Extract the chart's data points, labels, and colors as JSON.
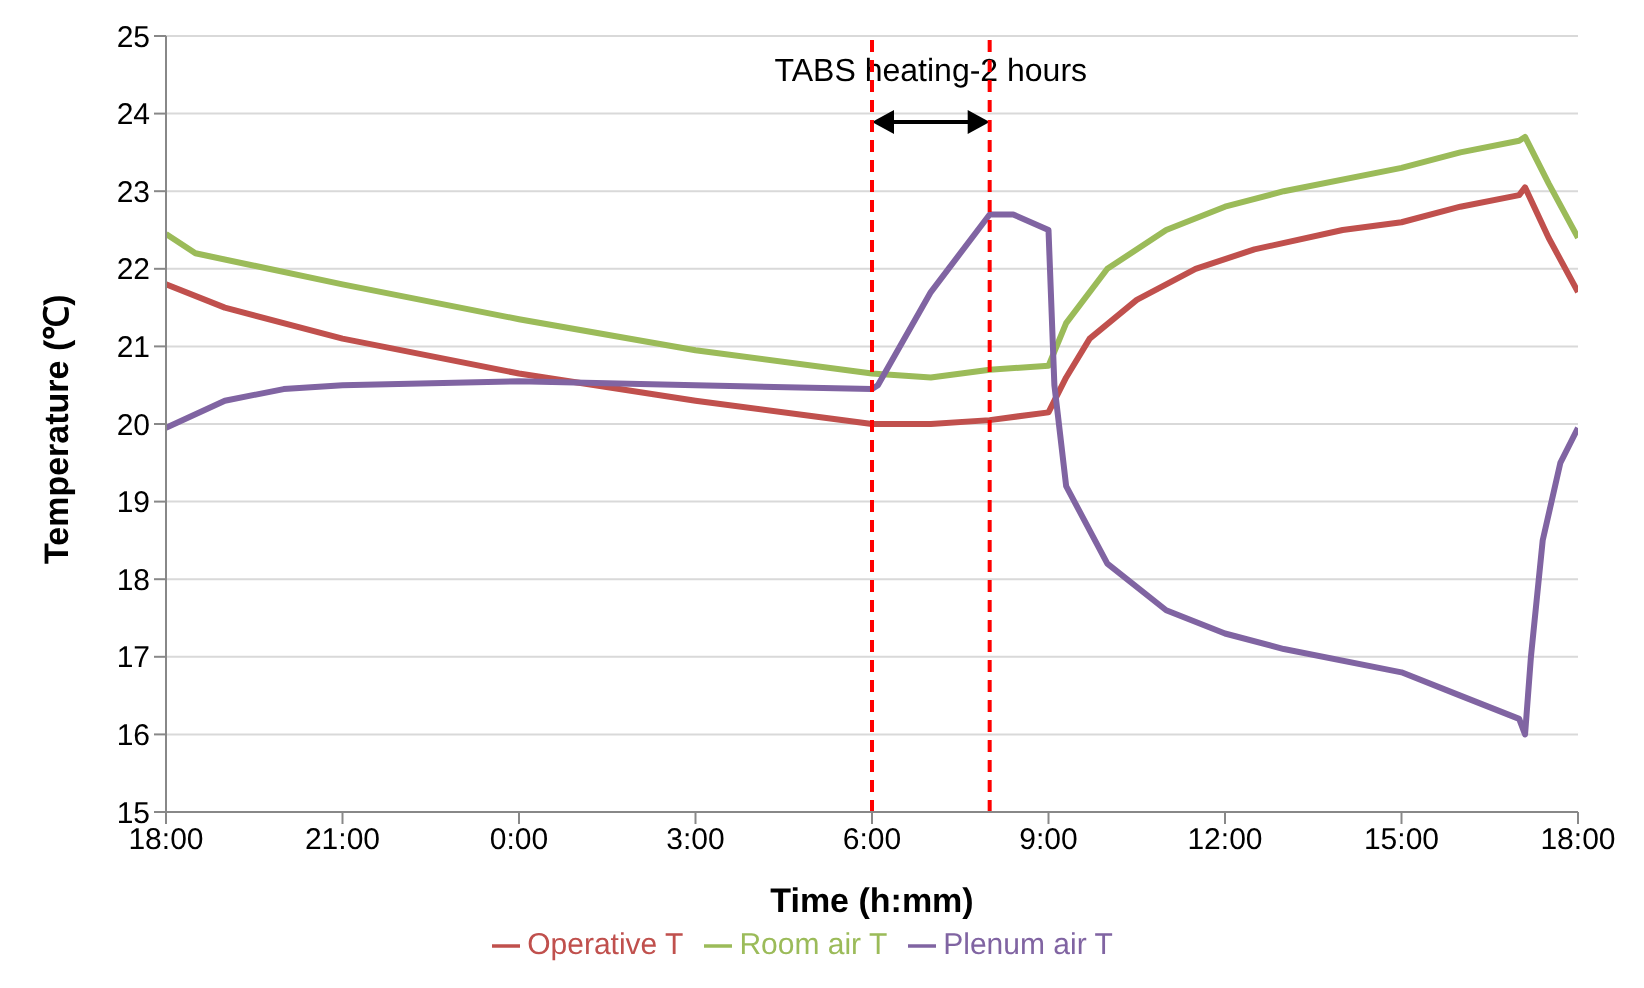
{
  "chart_data": {
    "type": "line",
    "xlabel": "Time (h:mm)",
    "ylabel": "Temperature (℃)",
    "xlim": [
      "2000-01-01T18:00",
      "2000-01-02T18:00"
    ],
    "xticks": [
      {
        "value": "2000-01-01T18:00",
        "label": "18:00"
      },
      {
        "value": "2000-01-01T21:00",
        "label": "21:00"
      },
      {
        "value": "2000-01-02T00:00",
        "label": "0:00"
      },
      {
        "value": "2000-01-02T03:00",
        "label": "3:00"
      },
      {
        "value": "2000-01-02T06:00",
        "label": "6:00"
      },
      {
        "value": "2000-01-02T09:00",
        "label": "9:00"
      },
      {
        "value": "2000-01-02T12:00",
        "label": "12:00"
      },
      {
        "value": "2000-01-02T15:00",
        "label": "15:00"
      },
      {
        "value": "2000-01-02T18:00",
        "label": "18:00"
      }
    ],
    "ylim": [
      15,
      25
    ],
    "yticks": [
      15,
      16,
      17,
      18,
      19,
      20,
      21,
      22,
      23,
      24,
      25
    ],
    "grid": "y",
    "legend": "bottom",
    "marker": "none",
    "line_style": "solid",
    "series": [
      {
        "name": "Operative T",
        "color": "#c0504d",
        "x": [
          "2000-01-01T18:00",
          "2000-01-01T19:00",
          "2000-01-01T21:00",
          "2000-01-02T00:00",
          "2000-01-02T03:00",
          "2000-01-02T05:00",
          "2000-01-02T06:00",
          "2000-01-02T07:00",
          "2000-01-02T08:00",
          "2000-01-02T09:00",
          "2000-01-02T09:18",
          "2000-01-02T09:42",
          "2000-01-02T10:30",
          "2000-01-02T11:30",
          "2000-01-02T12:30",
          "2000-01-02T14:00",
          "2000-01-02T15:00",
          "2000-01-02T16:00",
          "2000-01-02T17:00",
          "2000-01-02T17:06",
          "2000-01-02T17:30",
          "2000-01-02T18:00"
        ],
        "values": [
          21.8,
          21.5,
          21.1,
          20.65,
          20.3,
          20.1,
          20.0,
          20.0,
          20.05,
          20.15,
          20.6,
          21.1,
          21.6,
          22.0,
          22.25,
          22.5,
          22.6,
          22.8,
          22.95,
          23.05,
          22.4,
          21.7
        ]
      },
      {
        "name": "Room air T",
        "color": "#9bbb59",
        "x": [
          "2000-01-01T18:00",
          "2000-01-01T18:30",
          "2000-01-01T21:00",
          "2000-01-02T00:00",
          "2000-01-02T03:00",
          "2000-01-02T06:00",
          "2000-01-02T07:00",
          "2000-01-02T08:00",
          "2000-01-02T09:00",
          "2000-01-02T09:18",
          "2000-01-02T10:00",
          "2000-01-02T11:00",
          "2000-01-02T12:00",
          "2000-01-02T13:00",
          "2000-01-02T15:00",
          "2000-01-02T16:00",
          "2000-01-02T17:00",
          "2000-01-02T17:06",
          "2000-01-02T17:30",
          "2000-01-02T18:00"
        ],
        "values": [
          22.45,
          22.2,
          21.8,
          21.35,
          20.95,
          20.65,
          20.6,
          20.7,
          20.75,
          21.3,
          22.0,
          22.5,
          22.8,
          23.0,
          23.3,
          23.5,
          23.65,
          23.7,
          23.1,
          22.4
        ]
      },
      {
        "name": "Plenum air T",
        "color": "#8064a2",
        "x": [
          "2000-01-01T18:00",
          "2000-01-01T19:00",
          "2000-01-01T20:00",
          "2000-01-01T21:00",
          "2000-01-02T00:00",
          "2000-01-02T03:00",
          "2000-01-02T06:00",
          "2000-01-02T06:06",
          "2000-01-02T07:00",
          "2000-01-02T08:00",
          "2000-01-02T08:24",
          "2000-01-02T09:00",
          "2000-01-02T09:06",
          "2000-01-02T09:18",
          "2000-01-02T10:00",
          "2000-01-02T11:00",
          "2000-01-02T12:00",
          "2000-01-02T13:00",
          "2000-01-02T15:00",
          "2000-01-02T16:00",
          "2000-01-02T17:00",
          "2000-01-02T17:06",
          "2000-01-02T17:12",
          "2000-01-02T17:24",
          "2000-01-02T17:42",
          "2000-01-02T18:00"
        ],
        "values": [
          19.95,
          20.3,
          20.45,
          20.5,
          20.55,
          20.5,
          20.45,
          20.5,
          21.7,
          22.7,
          22.7,
          22.5,
          20.5,
          19.2,
          18.2,
          17.6,
          17.3,
          17.1,
          16.8,
          16.5,
          16.2,
          16.0,
          17.0,
          18.5,
          19.5,
          19.95
        ]
      }
    ],
    "ref_lines": [
      {
        "axis": "x",
        "value": "2000-01-02T06:00",
        "color": "#ff0000",
        "line_style": "dashed"
      },
      {
        "axis": "x",
        "value": "2000-01-02T08:00",
        "color": "#ff0000",
        "line_style": "dashed"
      }
    ],
    "annotations": [
      "TABS heating-2 hours"
    ]
  }
}
